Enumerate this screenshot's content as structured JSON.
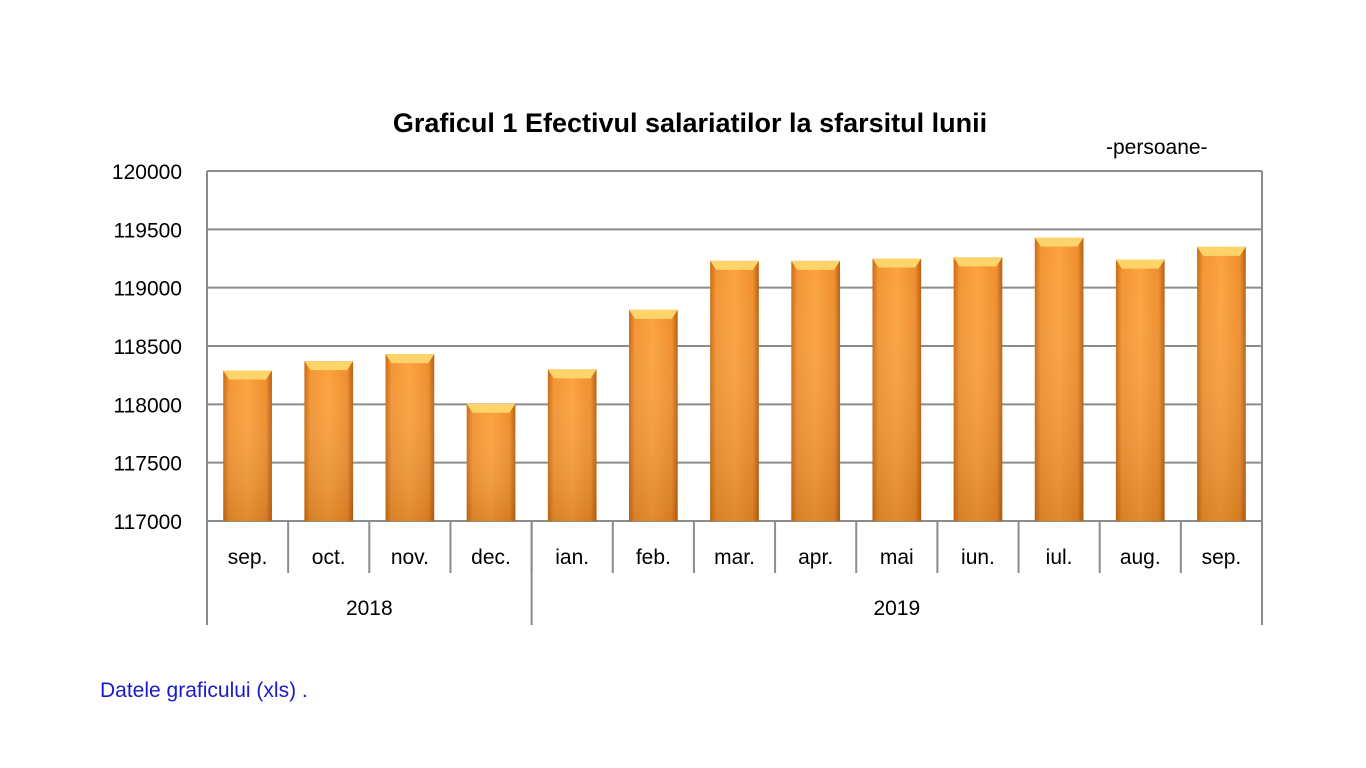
{
  "chart_data": {
    "type": "bar",
    "title": "Graficul 1  Efectivul salariatilor la sfarsitul lunii",
    "unit_label": "-persoane-",
    "categories": [
      "sep.",
      "oct.",
      "nov.",
      "dec.",
      "ian.",
      "feb.",
      "mar.",
      "apr.",
      "mai",
      "iun.",
      "iul.",
      "aug.",
      "sep."
    ],
    "groups": [
      {
        "label": "2018",
        "count": 4
      },
      {
        "label": "2019",
        "count": 9
      }
    ],
    "values": [
      118290,
      118370,
      118430,
      118005,
      118300,
      118810,
      119230,
      119230,
      119250,
      119260,
      119430,
      119240,
      119350
    ],
    "ylim": [
      117000,
      120000
    ],
    "yticks": [
      "117000",
      "117500",
      "118000",
      "118500",
      "119000",
      "119500",
      "120000"
    ],
    "grid": true,
    "bar_color": "#F7962F",
    "xlabel": "",
    "ylabel": ""
  },
  "footer": {
    "link_text": "Datele graficului (xls) ."
  }
}
